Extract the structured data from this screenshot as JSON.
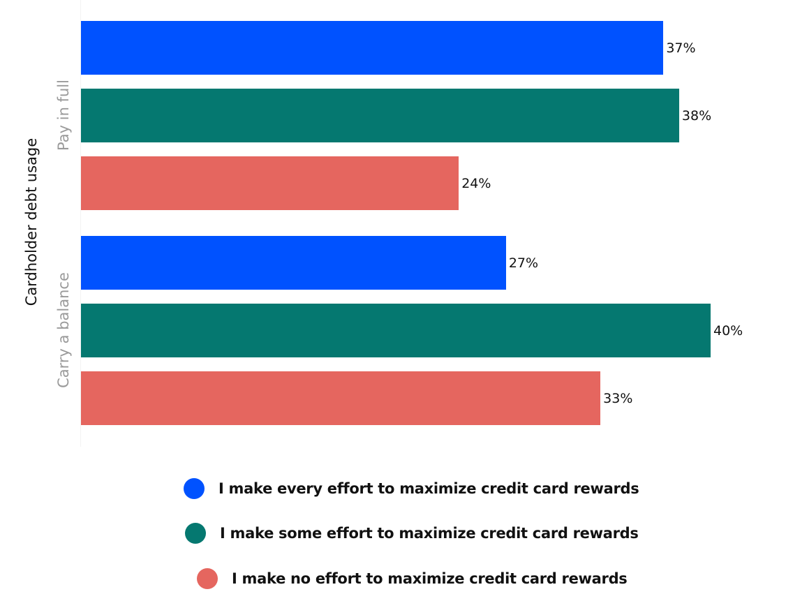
{
  "chart_data": {
    "type": "bar",
    "orientation": "horizontal",
    "title": "",
    "ylabel": "Cardholder debt usage",
    "xlabel": "",
    "categories": [
      "Pay in full",
      "Carry a balance"
    ],
    "series": [
      {
        "name": "I make every effort to maximize credit card rewards",
        "color": "#0052ff",
        "values": [
          37,
          27
        ],
        "labels": [
          "37%",
          "27%"
        ]
      },
      {
        "name": "I make some effort to maximize credit card rewards",
        "color": "#057870",
        "values": [
          38,
          40
        ],
        "labels": [
          "38%",
          "40%"
        ]
      },
      {
        "name": "I make no effort to maximize credit card rewards",
        "color": "#e5665f",
        "values": [
          24,
          33
        ],
        "labels": [
          "24%",
          "33%"
        ]
      }
    ],
    "xlim": [
      0,
      40
    ],
    "grid": false,
    "legend_position": "bottom"
  },
  "axis": {
    "title": "Cardholder debt usage"
  },
  "groups": [
    {
      "label": "Pay in full"
    },
    {
      "label": "Carry a balance"
    }
  ],
  "legend": [
    {
      "label": "I make every effort to maximize credit card rewards",
      "color": "#0052ff"
    },
    {
      "label": "I make some effort to maximize credit card rewards",
      "color": "#057870"
    },
    {
      "label": "I make no effort to maximize credit card rewards",
      "color": "#e5665f"
    }
  ]
}
